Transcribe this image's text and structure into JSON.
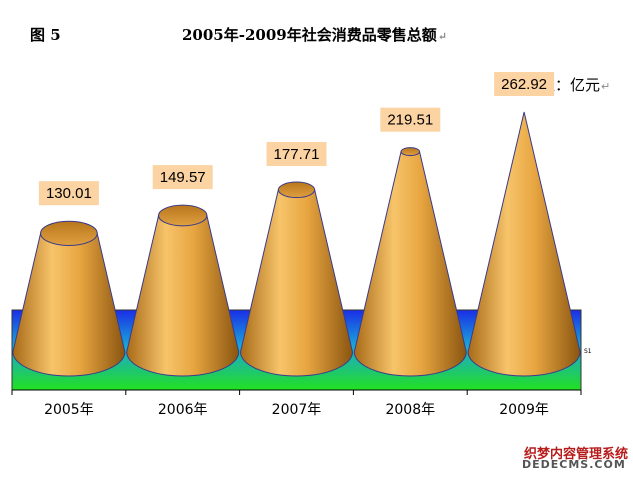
{
  "header": {
    "figure_label": "图 5",
    "title": "2005年-2009年社会消费品零售总额",
    "unit": "单位：亿元",
    "paragraph_mark": "↵"
  },
  "chart_data": {
    "type": "bar",
    "shape": "cone",
    "categories": [
      "2005年",
      "2006年",
      "2007年",
      "2008年",
      "2009年"
    ],
    "values": [
      130.01,
      149.57,
      177.71,
      219.51,
      262.92
    ],
    "data_labels": [
      "130.01",
      "149.57",
      "177.71",
      "219.51",
      "262.92"
    ],
    "legend": "S1",
    "ylim": [
      0,
      262.92
    ]
  },
  "watermark": {
    "top": "织梦内容管理系统",
    "bottom": "DEDECMS.COM"
  },
  "colors": {
    "cone_light": "#f7c46a",
    "cone_mid": "#d4902a",
    "cone_dark": "#8a5510",
    "label_bg": "#fcd3a3"
  }
}
